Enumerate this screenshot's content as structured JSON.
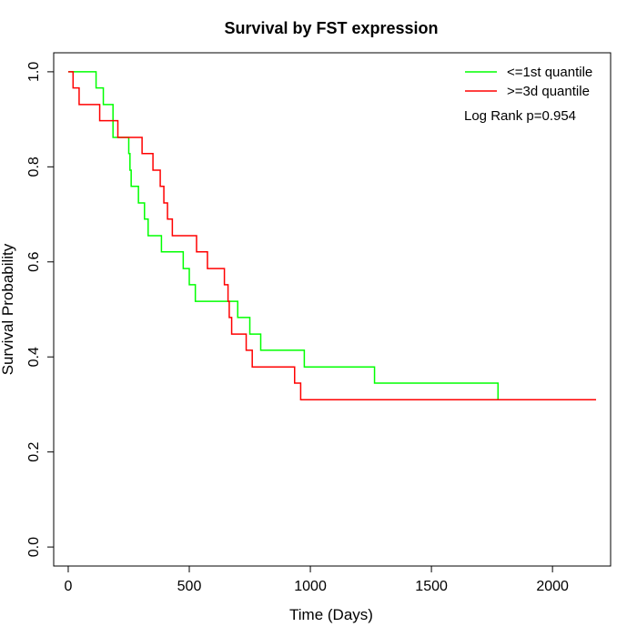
{
  "chart_data": {
    "type": "line",
    "title": "Survival by FST expression",
    "xlabel": "Time (Days)",
    "ylabel": "Survival Probability",
    "xlim": [
      -60,
      2240
    ],
    "ylim": [
      -0.04,
      1.04
    ],
    "x_ticks": [
      0,
      500,
      1000,
      1500,
      2000
    ],
    "y_ticks": [
      0.0,
      0.2,
      0.4,
      0.6,
      0.8,
      1.0
    ],
    "x_tick_labels": [
      "0",
      "500",
      "1000",
      "1500",
      "2000"
    ],
    "y_tick_labels": [
      "0.0",
      "0.2",
      "0.4",
      "0.6",
      "0.8",
      "1.0"
    ],
    "grid": false,
    "legend_position": "top-right",
    "annotation": "Log Rank p=0.954",
    "series": [
      {
        "name": "<=1st quantile",
        "color": "#00ff00",
        "steps": [
          [
            0,
            1.0
          ],
          [
            115,
            0.966
          ],
          [
            145,
            0.931
          ],
          [
            185,
            0.862
          ],
          [
            250,
            0.828
          ],
          [
            255,
            0.793
          ],
          [
            260,
            0.759
          ],
          [
            290,
            0.724
          ],
          [
            315,
            0.69
          ],
          [
            330,
            0.655
          ],
          [
            385,
            0.621
          ],
          [
            475,
            0.586
          ],
          [
            500,
            0.552
          ],
          [
            525,
            0.517
          ],
          [
            700,
            0.483
          ],
          [
            750,
            0.448
          ],
          [
            795,
            0.414
          ],
          [
            975,
            0.379
          ],
          [
            1265,
            0.345
          ],
          [
            1775,
            0.31
          ]
        ],
        "end": 1775
      },
      {
        "name": ">=3d quantile",
        "color": "#ff0000",
        "steps": [
          [
            0,
            1.0
          ],
          [
            20,
            0.966
          ],
          [
            45,
            0.931
          ],
          [
            130,
            0.897
          ],
          [
            205,
            0.862
          ],
          [
            305,
            0.828
          ],
          [
            350,
            0.793
          ],
          [
            380,
            0.759
          ],
          [
            395,
            0.724
          ],
          [
            410,
            0.69
          ],
          [
            430,
            0.655
          ],
          [
            530,
            0.621
          ],
          [
            575,
            0.586
          ],
          [
            645,
            0.552
          ],
          [
            660,
            0.517
          ],
          [
            665,
            0.483
          ],
          [
            675,
            0.448
          ],
          [
            735,
            0.414
          ],
          [
            760,
            0.379
          ],
          [
            935,
            0.345
          ],
          [
            960,
            0.31
          ]
        ],
        "end": 2180
      }
    ]
  }
}
